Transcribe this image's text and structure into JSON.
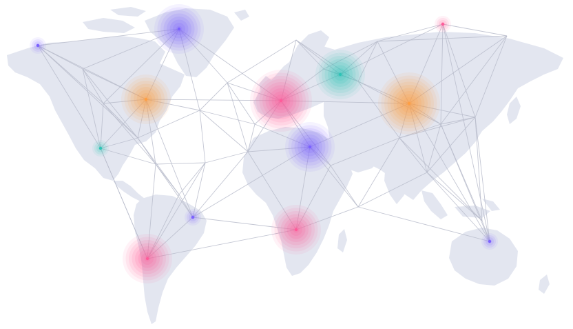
{
  "map": {
    "style": "world-network",
    "background_color": "#ffffff",
    "land_color": "#e3e6f0",
    "link_color": "#b8bccb"
  },
  "hubs": [
    {
      "id": "alaska",
      "color": "#7b61ff",
      "level": 1
    },
    {
      "id": "greenland",
      "color": "#7b61ff",
      "level": 3
    },
    {
      "id": "canada-east",
      "color": "#ff9f43",
      "level": 3
    },
    {
      "id": "usa-south",
      "color": "#2ec4b6",
      "level": 1
    },
    {
      "id": "brazil-north",
      "color": "#7b61ff",
      "level": 1
    },
    {
      "id": "chile",
      "color": "#ff5c9a",
      "level": 3
    },
    {
      "id": "europe-west",
      "color": "#ff5c9a",
      "level": 4
    },
    {
      "id": "russia-west",
      "color": "#2ec4b6",
      "level": 3
    },
    {
      "id": "north-africa",
      "color": "#7b61ff",
      "level": 3
    },
    {
      "id": "central-africa",
      "color": "#ff5c9a",
      "level": 3
    },
    {
      "id": "siberia",
      "color": "#ff9f43",
      "level": 4
    },
    {
      "id": "siberia-north",
      "color": "#ff5c9a",
      "level": 1
    },
    {
      "id": "australia-east",
      "color": "#7b61ff",
      "level": 1
    }
  ]
}
